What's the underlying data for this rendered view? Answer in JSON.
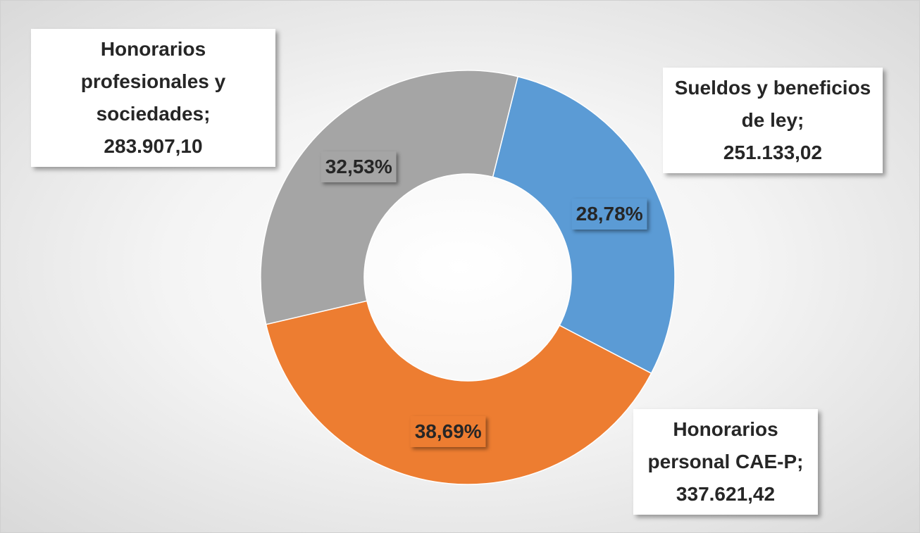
{
  "chart_data": {
    "type": "donut",
    "categories": [
      "Sueldos y beneficios de ley",
      "Honorarios personal CAE-P",
      "Honorarios profesionales y sociedades"
    ],
    "label_separator": ";",
    "values": [
      251133.02,
      337621.42,
      283907.1
    ],
    "value_labels": [
      "251.133,02",
      "337.621,42",
      "283.907,10"
    ],
    "percentages": [
      28.78,
      38.69,
      32.53
    ],
    "percentage_labels": [
      "28,78%",
      "38,69%",
      "32,53%"
    ],
    "colors": [
      "#5b9bd5",
      "#ed7d31",
      "#a5a5a5"
    ]
  }
}
